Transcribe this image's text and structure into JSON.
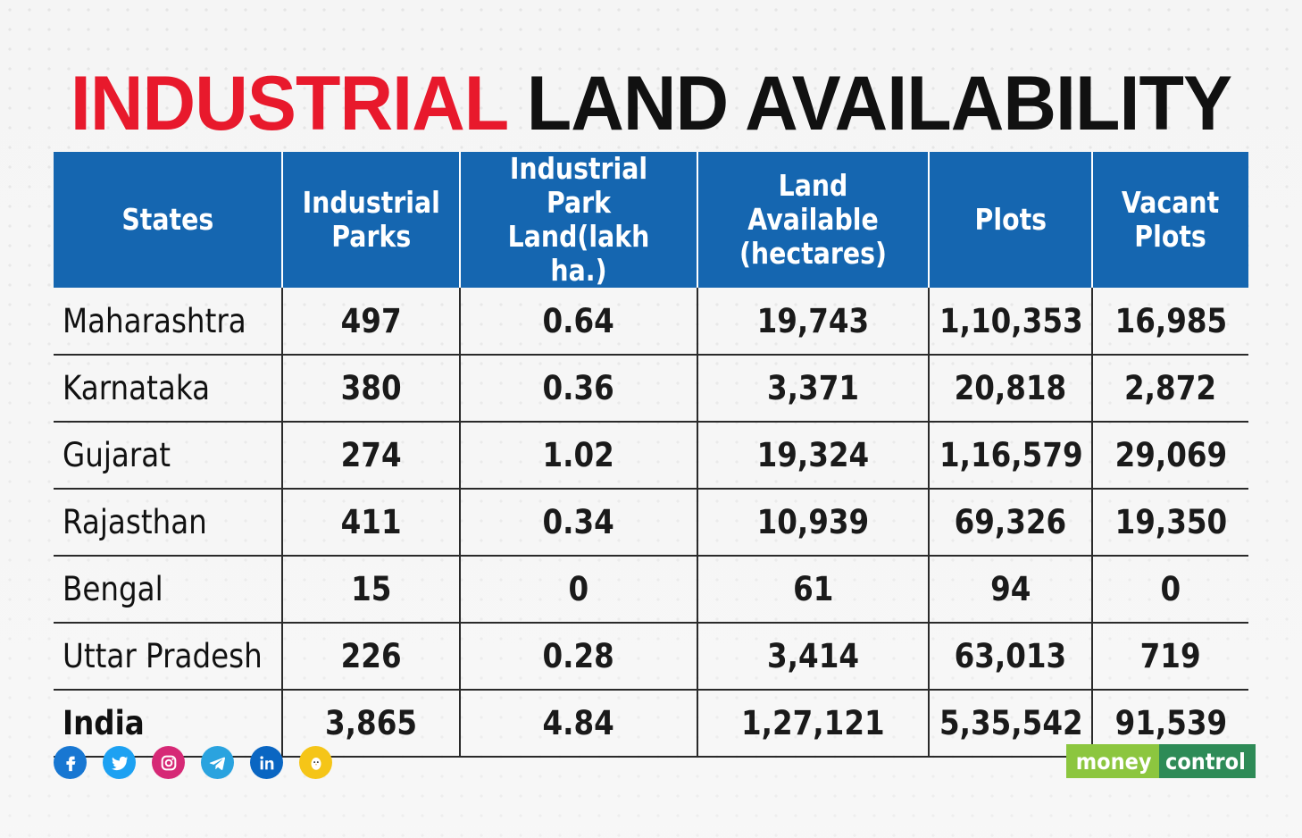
{
  "title": {
    "part1": "INDUSTRIAL",
    "part2": "LAND AVAILABILITY"
  },
  "chart_data": {
    "type": "table",
    "title": "INDUSTRIAL LAND AVAILABILITY",
    "columns": [
      "States",
      "Industrial Parks",
      "Industrial Park Land(lakh ha.)",
      "Land Available (hectares)",
      "Plots",
      "Vacant Plots"
    ],
    "header_lines": [
      [
        "States"
      ],
      [
        "Industrial",
        "Parks"
      ],
      [
        "Industrial Park",
        "Land(lakh ha.)"
      ],
      [
        "Land Available",
        "(hectares)"
      ],
      [
        "Plots"
      ],
      [
        "Vacant",
        "Plots"
      ]
    ],
    "rows": [
      [
        "Maharashtra",
        "497",
        "0.64",
        "19,743",
        "1,10,353",
        "16,985"
      ],
      [
        "Karnataka",
        "380",
        "0.36",
        "3,371",
        "20,818",
        "2,872"
      ],
      [
        "Gujarat",
        "274",
        "1.02",
        "19,324",
        "1,16,579",
        "29,069"
      ],
      [
        "Rajasthan",
        "411",
        "0.34",
        "10,939",
        "69,326",
        "19,350"
      ],
      [
        "Bengal",
        "15",
        "0",
        "61",
        "94",
        "0"
      ],
      [
        "Uttar Pradesh",
        "226",
        "0.28",
        "3,414",
        "63,013",
        "719"
      ],
      [
        "India",
        "3,865",
        "4.84",
        "1,27,121",
        "5,35,542",
        "91,539"
      ]
    ],
    "total_row_index": 6,
    "header_color": "#1566b0",
    "title_accent_color": "#e8192c"
  },
  "footer": {
    "social_icons": [
      {
        "name": "facebook-icon",
        "glyph": "f",
        "color": "#1877d2"
      },
      {
        "name": "twitter-icon",
        "glyph": "bird",
        "color": "#1da1f2"
      },
      {
        "name": "instagram-icon",
        "glyph": "cam",
        "color": "#d62976"
      },
      {
        "name": "telegram-icon",
        "glyph": "plane",
        "color": "#2aa3df"
      },
      {
        "name": "linkedin-icon",
        "glyph": "in",
        "color": "#0a66c2"
      },
      {
        "name": "koo-icon",
        "glyph": "koo",
        "color": "#f5c518"
      }
    ],
    "brand": {
      "part1": "money",
      "part2": "control"
    }
  }
}
